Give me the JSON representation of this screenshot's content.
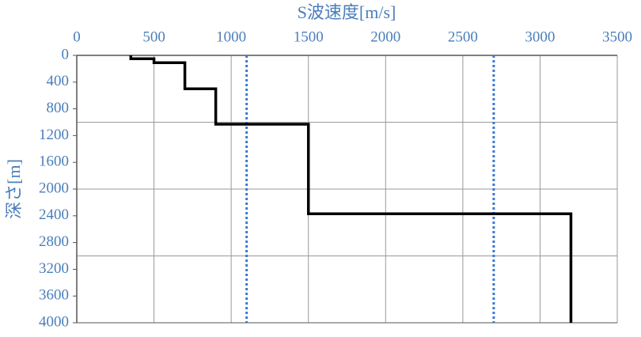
{
  "chart_data": {
    "type": "line",
    "x_label": "S波速度[m/s]",
    "y_label": "深さ[m]",
    "x": [
      350,
      350,
      500,
      500,
      700,
      700,
      900,
      900,
      1500,
      1500,
      3200,
      3200
    ],
    "values": [
      0,
      50,
      50,
      110,
      110,
      500,
      500,
      1030,
      1030,
      2370,
      2370,
      4000
    ],
    "color": "#000000",
    "xlim": [
      0,
      3500
    ],
    "xticks": [
      0,
      500,
      1000,
      1500,
      2000,
      2500,
      3000,
      3500
    ],
    "ylim": [
      0,
      4000
    ],
    "yticks": [
      0,
      400,
      800,
      1200,
      1600,
      2000,
      2400,
      2800,
      3200,
      3600,
      4000
    ],
    "y_inverted": true,
    "x_axis_position": "top",
    "ygrid": [
      1000,
      2000,
      3000
    ],
    "reference_lines": {
      "x": [
        1100,
        2700
      ],
      "color": "#3a78d4",
      "dashed": true
    }
  }
}
